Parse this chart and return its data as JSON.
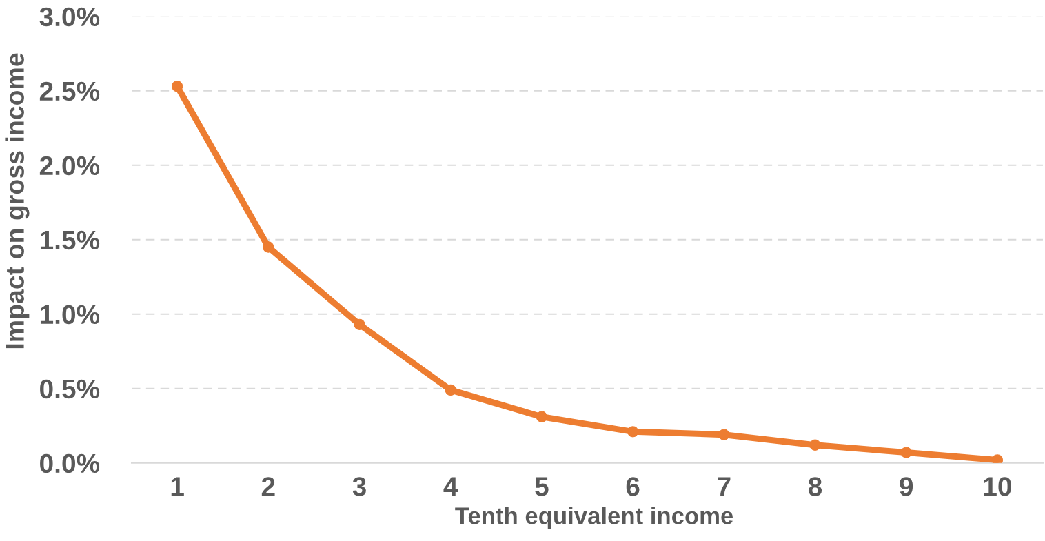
{
  "chart_data": {
    "type": "line",
    "xlabel": "Tenth equivalent income",
    "ylabel": "Impact on gross income",
    "categories": [
      "1",
      "2",
      "3",
      "4",
      "5",
      "6",
      "7",
      "8",
      "9",
      "10"
    ],
    "values": [
      2.53,
      1.45,
      0.93,
      0.49,
      0.31,
      0.21,
      0.19,
      0.12,
      0.07,
      0.02
    ],
    "color": "#ed7d31",
    "ylim": [
      0,
      3
    ],
    "yticks": [
      {
        "value": 0,
        "label": "0.0%"
      },
      {
        "value": 0.5,
        "label": "0.5%"
      },
      {
        "value": 1,
        "label": "1.0%"
      },
      {
        "value": 1.5,
        "label": "1.5%"
      },
      {
        "value": 2,
        "label": "2.0%"
      },
      {
        "value": 2.5,
        "label": "2.5%"
      },
      {
        "value": 3,
        "label": "3.0%"
      }
    ],
    "grid": "y",
    "marker": "circle",
    "line_style": "solid"
  }
}
